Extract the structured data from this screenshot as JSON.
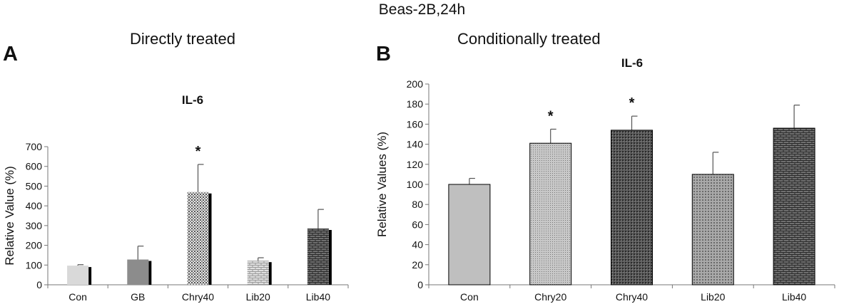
{
  "figure_title": "Beas-2B,24h",
  "chart_data": [
    {
      "panel": "A",
      "panel_title": "Directly treated",
      "type": "bar",
      "title": "IL-6",
      "ylabel": "Relative Value (%)",
      "xlabel": "",
      "ylim": [
        0,
        700
      ],
      "yticks": [
        0,
        100,
        200,
        300,
        400,
        500,
        600,
        700
      ],
      "categories": [
        "Con",
        "GB",
        "Chry40",
        "Lib20",
        "Lib40"
      ],
      "values": [
        97,
        128,
        470,
        122,
        285
      ],
      "errors": [
        5,
        68,
        140,
        15,
        97
      ],
      "significance": [
        "",
        "",
        "*",
        "",
        ""
      ],
      "fills": [
        "solid-light-gray",
        "solid-dark-gray",
        "dotted",
        "light-brick",
        "dark-brick"
      ],
      "colors": {
        "light": "#d9d9d9",
        "dark": "#8c8c8c",
        "shadow": "#000000"
      },
      "grid": false
    },
    {
      "panel": "B",
      "panel_title": "Conditionally treated",
      "type": "bar",
      "title": "IL-6",
      "ylabel": "Relative Values (%)",
      "xlabel": "",
      "ylim": [
        0,
        200
      ],
      "yticks": [
        0,
        20,
        40,
        60,
        80,
        100,
        120,
        140,
        160,
        180,
        200
      ],
      "categories": [
        "Con",
        "Chry20",
        "Chry40",
        "Lib20",
        "Lib40"
      ],
      "values": [
        100,
        141,
        154,
        110,
        156
      ],
      "errors": [
        6,
        14,
        14,
        22,
        23
      ],
      "significance": [
        "",
        "*",
        "*",
        "",
        ""
      ],
      "fills": [
        "solid-gray",
        "fine-dots",
        "dark-dots",
        "medium-dots",
        "dark-brick"
      ],
      "colors": {
        "solid": "#bfbfbf",
        "edge": "#000000"
      },
      "grid": false
    }
  ]
}
